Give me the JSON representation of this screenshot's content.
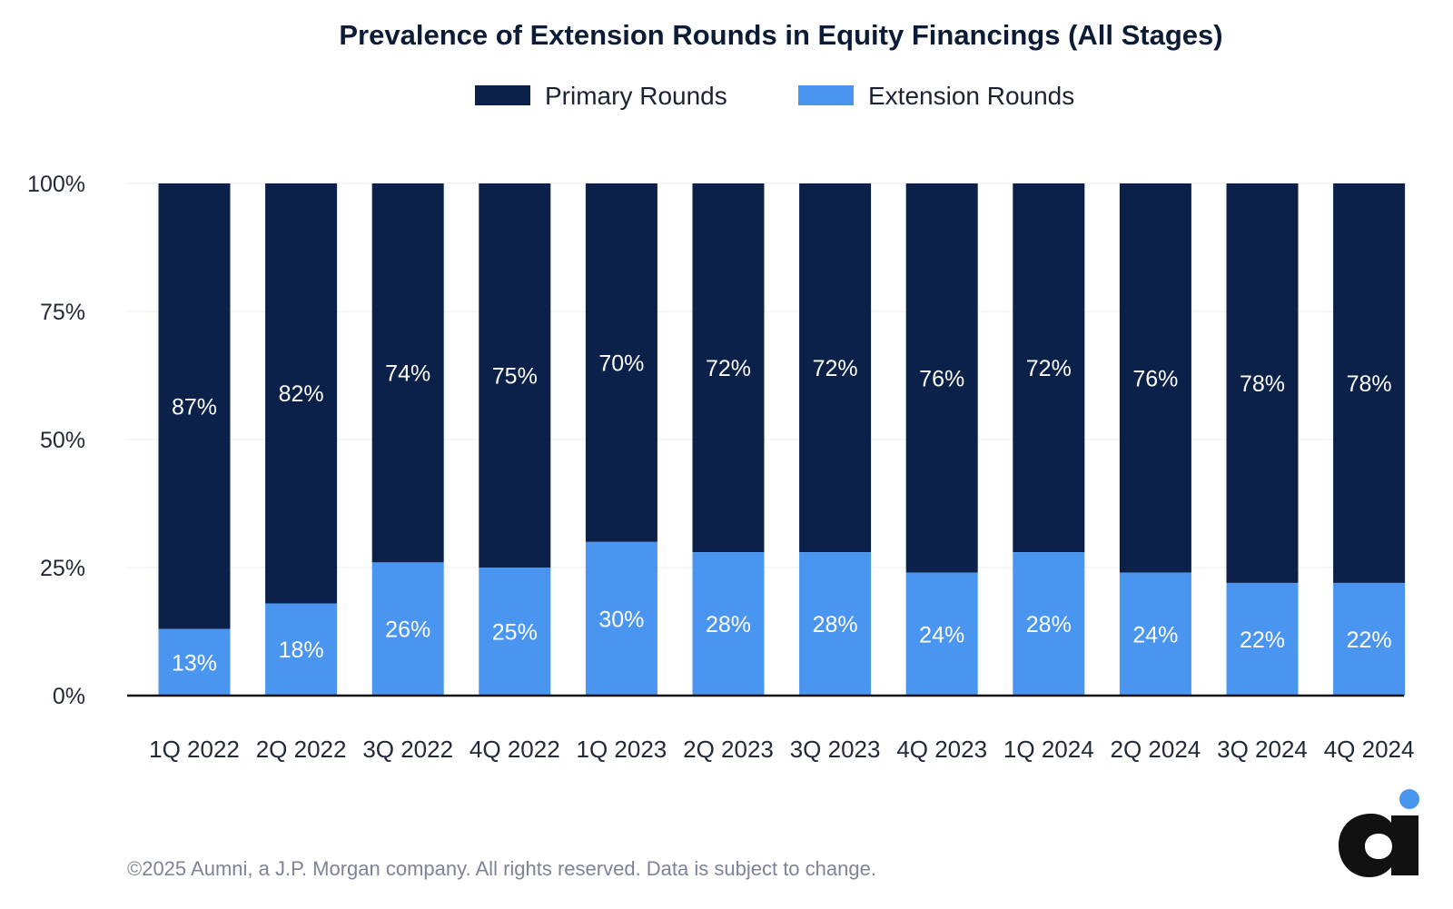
{
  "chart_data": {
    "type": "bar",
    "stacked": true,
    "title": "Prevalence of Extension Rounds in Equity Financings (All Stages)",
    "categories": [
      "1Q 2022",
      "2Q 2022",
      "3Q 2022",
      "4Q 2022",
      "1Q 2023",
      "2Q 2023",
      "3Q 2023",
      "4Q 2023",
      "1Q 2024",
      "2Q 2024",
      "3Q 2024",
      "4Q 2024"
    ],
    "series": [
      {
        "name": "Extension Rounds",
        "color": "#4a95f0",
        "values": [
          13,
          18,
          26,
          25,
          30,
          28,
          28,
          24,
          28,
          24,
          22,
          22
        ]
      },
      {
        "name": "Primary Rounds",
        "color": "#0b2149",
        "values": [
          87,
          82,
          74,
          75,
          70,
          72,
          72,
          76,
          72,
          76,
          78,
          78
        ]
      }
    ],
    "legend_order": [
      "Primary Rounds",
      "Extension Rounds"
    ],
    "legend_position": "top-center",
    "y_ticks": [
      "0%",
      "25%",
      "50%",
      "75%",
      "100%"
    ],
    "y_tick_values": [
      0,
      25,
      50,
      75,
      100
    ],
    "ylim": [
      0,
      100
    ],
    "xlabel": "",
    "ylabel": "",
    "grid": true
  },
  "footer": "©2025 Aumni, a J.P. Morgan company. All rights reserved. Data is subject to change.",
  "logo": {
    "name": "aumni-logo-icon",
    "color": "#111111",
    "dot_color": "#4a95f0"
  }
}
